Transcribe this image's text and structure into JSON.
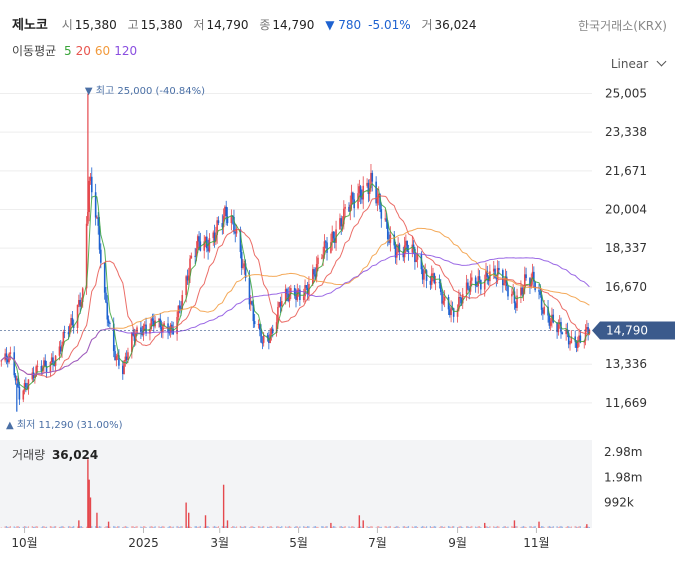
{
  "header": {
    "stock_name": "제노코",
    "open_label": "시",
    "open": "15,380",
    "high_label": "고",
    "high": "15,380",
    "low_label": "저",
    "low": "14,790",
    "close_label": "종",
    "close": "14,790",
    "change": "▼ 780",
    "change_pct": "-5.01%",
    "volume_label": "거",
    "volume": "36,024",
    "exchange": "한국거래소(KRX)"
  },
  "moving_average": {
    "label": "이동평균",
    "periods": [
      {
        "value": "5",
        "color": "#3aa53a"
      },
      {
        "value": "20",
        "color": "#e8554e"
      },
      {
        "value": "60",
        "color": "#f29a3c"
      },
      {
        "value": "120",
        "color": "#8a4fe0"
      }
    ]
  },
  "scale_selector": "Linear",
  "chart_data": {
    "type": "candlestick",
    "y_ticks": [
      "25,005",
      "23,338",
      "21,671",
      "20,004",
      "18,337",
      "16,670",
      "13,336",
      "11,669"
    ],
    "ylim": [
      10500,
      25500
    ],
    "x_ticks": [
      "10월",
      "2025",
      "3월",
      "5월",
      "7월",
      "9월",
      "11월"
    ],
    "current_price": "14,790",
    "max_annotation": "▼ 최고 25,000 (-40.84%)",
    "min_annotation": "▲ 최저 11,290 (31.00%)",
    "series_close": [
      {
        "x": "2024-09-20",
        "y": 13500
      },
      {
        "x": "2024-09-27",
        "y": 12100
      },
      {
        "x": "2024-10-04",
        "y": 12700
      },
      {
        "x": "2024-10-11",
        "y": 13000
      },
      {
        "x": "2024-10-18",
        "y": 13200
      },
      {
        "x": "2024-10-25",
        "y": 13700
      },
      {
        "x": "2024-11-01",
        "y": 14600
      },
      {
        "x": "2024-11-08",
        "y": 15000
      },
      {
        "x": "2024-11-15",
        "y": 16500
      },
      {
        "x": "2024-11-20",
        "y": 21500
      },
      {
        "x": "2024-11-25",
        "y": 20000
      },
      {
        "x": "2024-12-02",
        "y": 16000
      },
      {
        "x": "2024-12-09",
        "y": 14000
      },
      {
        "x": "2024-12-16",
        "y": 13200
      },
      {
        "x": "2024-12-23",
        "y": 14300
      },
      {
        "x": "2025-01-02",
        "y": 15000
      },
      {
        "x": "2025-01-09",
        "y": 15300
      },
      {
        "x": "2025-01-16",
        "y": 14700
      },
      {
        "x": "2025-01-23",
        "y": 14800
      },
      {
        "x": "2025-02-06",
        "y": 17500
      },
      {
        "x": "2025-02-13",
        "y": 18500
      },
      {
        "x": "2025-02-20",
        "y": 18700
      },
      {
        "x": "2025-02-27",
        "y": 19200
      },
      {
        "x": "2025-03-06",
        "y": 19600
      },
      {
        "x": "2025-03-13",
        "y": 19300
      },
      {
        "x": "2025-03-20",
        "y": 17500
      },
      {
        "x": "2025-03-27",
        "y": 15200
      },
      {
        "x": "2025-04-03",
        "y": 14300
      },
      {
        "x": "2025-04-10",
        "y": 14800
      },
      {
        "x": "2025-04-17",
        "y": 16000
      },
      {
        "x": "2025-04-24",
        "y": 16200
      },
      {
        "x": "2025-05-01",
        "y": 16500
      },
      {
        "x": "2025-05-08",
        "y": 16700
      },
      {
        "x": "2025-05-15",
        "y": 17300
      },
      {
        "x": "2025-05-22",
        "y": 18500
      },
      {
        "x": "2025-05-29",
        "y": 19100
      },
      {
        "x": "2025-06-05",
        "y": 19600
      },
      {
        "x": "2025-06-12",
        "y": 20300
      },
      {
        "x": "2025-06-19",
        "y": 21000
      },
      {
        "x": "2025-06-26",
        "y": 21200
      },
      {
        "x": "2025-07-03",
        "y": 19900
      },
      {
        "x": "2025-07-10",
        "y": 18900
      },
      {
        "x": "2025-07-17",
        "y": 18300
      },
      {
        "x": "2025-07-24",
        "y": 18200
      },
      {
        "x": "2025-07-31",
        "y": 17900
      },
      {
        "x": "2025-08-07",
        "y": 17300
      },
      {
        "x": "2025-08-14",
        "y": 17000
      },
      {
        "x": "2025-08-21",
        "y": 15900
      },
      {
        "x": "2025-08-28",
        "y": 15700
      },
      {
        "x": "2025-09-04",
        "y": 16300
      },
      {
        "x": "2025-09-11",
        "y": 16600
      },
      {
        "x": "2025-09-18",
        "y": 16900
      },
      {
        "x": "2025-09-25",
        "y": 17400
      },
      {
        "x": "2025-10-02",
        "y": 17100
      },
      {
        "x": "2025-10-09",
        "y": 16600
      },
      {
        "x": "2025-10-16",
        "y": 16200
      },
      {
        "x": "2025-10-23",
        "y": 16900
      },
      {
        "x": "2025-10-30",
        "y": 16800
      },
      {
        "x": "2025-11-06",
        "y": 15800
      },
      {
        "x": "2025-11-13",
        "y": 15300
      },
      {
        "x": "2025-11-20",
        "y": 14700
      },
      {
        "x": "2025-11-27",
        "y": 14300
      },
      {
        "x": "2025-12-04",
        "y": 14500
      },
      {
        "x": "2025-12-11",
        "y": 14790
      }
    ]
  },
  "volume": {
    "label": "거래량",
    "value": "36,024",
    "y_ticks": [
      "2.98m",
      "1.98m",
      "992k"
    ],
    "ylim": [
      0,
      3300000
    ],
    "bars": [
      {
        "x": "2024-11-12",
        "y": 300000
      },
      {
        "x": "2024-11-19",
        "y": 2700000
      },
      {
        "x": "2024-11-20",
        "y": 1900000
      },
      {
        "x": "2024-11-21",
        "y": 1200000
      },
      {
        "x": "2024-11-26",
        "y": 600000
      },
      {
        "x": "2024-12-05",
        "y": 250000
      },
      {
        "x": "2025-02-03",
        "y": 1000000
      },
      {
        "x": "2025-02-05",
        "y": 600000
      },
      {
        "x": "2025-02-18",
        "y": 500000
      },
      {
        "x": "2025-03-04",
        "y": 1700000
      },
      {
        "x": "2025-03-07",
        "y": 300000
      },
      {
        "x": "2025-05-26",
        "y": 200000
      },
      {
        "x": "2025-06-17",
        "y": 500000
      },
      {
        "x": "2025-06-20",
        "y": 300000
      },
      {
        "x": "2025-09-22",
        "y": 200000
      },
      {
        "x": "2025-10-15",
        "y": 300000
      },
      {
        "x": "2025-11-03",
        "y": 250000
      },
      {
        "x": "2025-12-10",
        "y": 150000
      }
    ]
  }
}
